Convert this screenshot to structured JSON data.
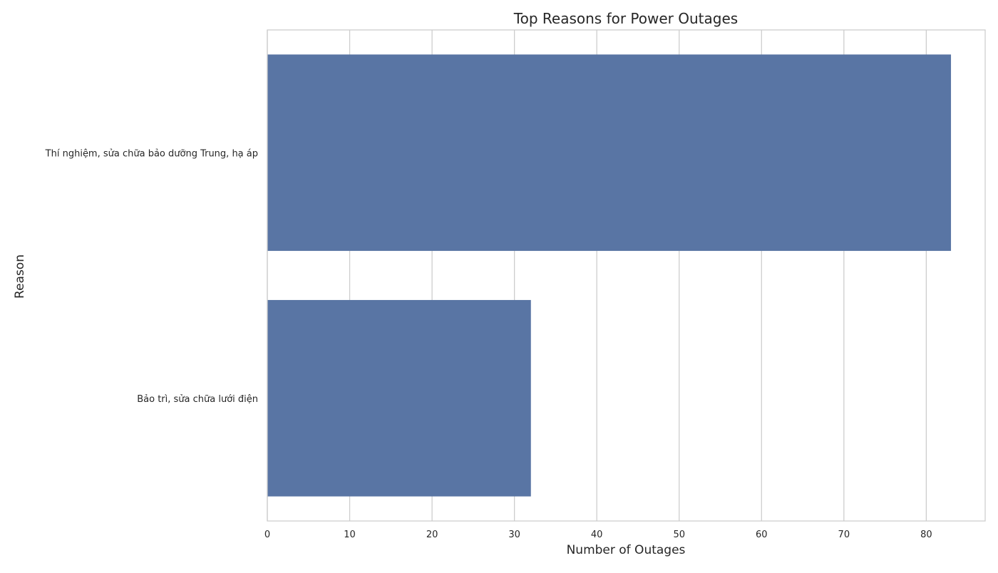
{
  "chart_data": {
    "type": "bar",
    "orientation": "horizontal",
    "title": "Top Reasons for Power Outages",
    "xlabel": "Number of Outages",
    "ylabel": "Reason",
    "categories": [
      "Thí nghiệm, sửa chữa bảo dưỡng Trung, hạ áp",
      "Bảo trì, sửa chữa lưới điện"
    ],
    "values": [
      83,
      32
    ],
    "xlim": [
      0,
      87.15
    ],
    "xticks": [
      0,
      10,
      20,
      30,
      40,
      50,
      60,
      70,
      80
    ],
    "grid": "vertical",
    "legend": "none",
    "colors": {
      "bar": "#5975a4",
      "grid": "#cccccc",
      "axis": "#cccccc",
      "text": "#262626"
    }
  }
}
